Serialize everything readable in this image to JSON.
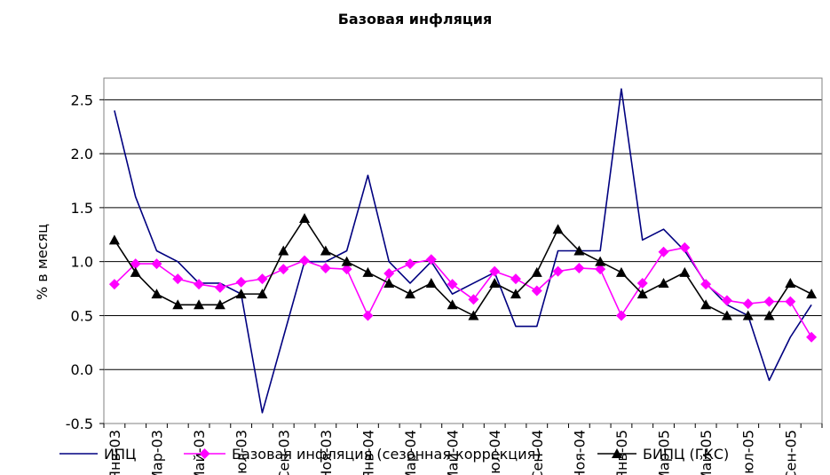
{
  "chart_data": {
    "type": "line",
    "title": "Базовая инфляция",
    "ylabel": "% в месяц",
    "xlabel": "",
    "ylim": [
      -0.5,
      2.7
    ],
    "yticks": [
      -0.5,
      0.0,
      0.5,
      1.0,
      1.5,
      2.0,
      2.5
    ],
    "ytick_labels": [
      "-0.5",
      "0.0",
      "0.5",
      "1.0",
      "1.5",
      "2.0",
      "2.5"
    ],
    "grid": true,
    "legend_position": "bottom",
    "categories": [
      "Янв-03",
      "Фев-03",
      "Мар-03",
      "Апр-03",
      "Май-03",
      "Июн-03",
      "Июл-03",
      "Авг-03",
      "Сен-03",
      "Окт-03",
      "Ноя-03",
      "Дек-03",
      "Янв-04",
      "Фев-04",
      "Мар-04",
      "Апр-04",
      "Май-04",
      "Июн-04",
      "Июл-04",
      "Авг-04",
      "Сен-04",
      "Окт-04",
      "Ноя-04",
      "Дек-04",
      "Янв-05",
      "Фев-05",
      "Мар-05",
      "Апр-05",
      "Май-05",
      "Июн-05",
      "Июл-05",
      "Авг-05",
      "Сен-05",
      "Окт-05"
    ],
    "xtick_labels": [
      "Янв-03",
      "Мар-03",
      "Май-03",
      "Июл-03",
      "Сен-03",
      "Ноя-03",
      "Янв-04",
      "Мар-04",
      "Май-04",
      "Июл-04",
      "Сен-04",
      "Ноя-04",
      "Янв-05",
      "Мар-05",
      "Май-05",
      "Июл-05",
      "Сен-05"
    ],
    "series": [
      {
        "name": "ИПЦ",
        "color": "#000080",
        "marker": "none",
        "values": [
          2.4,
          1.6,
          1.1,
          1.0,
          0.8,
          0.8,
          0.7,
          -0.4,
          0.3,
          1.0,
          1.0,
          1.1,
          1.8,
          1.0,
          0.8,
          1.0,
          0.7,
          0.8,
          0.9,
          0.4,
          0.4,
          1.1,
          1.1,
          1.1,
          2.6,
          1.2,
          1.3,
          1.1,
          0.8,
          0.6,
          0.5,
          -0.1,
          0.3,
          0.6
        ]
      },
      {
        "name": "Базовая инфляция (сезонная коррекция)",
        "color": "#ff00ff",
        "marker": "diamond",
        "values": [
          0.79,
          0.98,
          0.98,
          0.84,
          0.79,
          0.76,
          0.81,
          0.84,
          0.93,
          1.01,
          0.94,
          0.93,
          0.5,
          0.89,
          0.98,
          1.02,
          0.79,
          0.65,
          0.91,
          0.84,
          0.73,
          0.91,
          0.94,
          0.93,
          0.5,
          0.8,
          1.09,
          1.13,
          0.79,
          0.64,
          0.61,
          0.63,
          0.63,
          0.3
        ]
      },
      {
        "name": "БИПЦ (ГКС)",
        "color": "#000000",
        "marker": "triangle",
        "values": [
          1.2,
          0.9,
          0.7,
          0.6,
          0.6,
          0.6,
          0.7,
          0.7,
          1.1,
          1.4,
          1.1,
          1.0,
          0.9,
          0.8,
          0.7,
          0.8,
          0.6,
          0.5,
          0.8,
          0.7,
          0.9,
          1.3,
          1.1,
          1.0,
          0.9,
          0.7,
          0.8,
          0.9,
          0.6,
          0.5,
          0.5,
          0.5,
          0.8,
          0.7
        ]
      }
    ]
  }
}
